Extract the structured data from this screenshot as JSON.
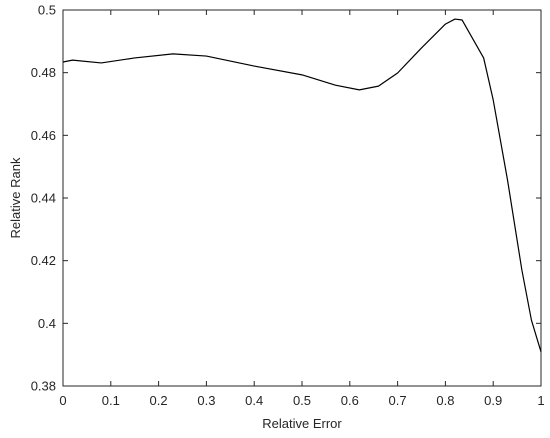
{
  "chart_data": {
    "type": "line",
    "xlabel": "Relative Error",
    "ylabel": "Relative Rank",
    "x": [
      0,
      0.02,
      0.08,
      0.15,
      0.23,
      0.3,
      0.4,
      0.5,
      0.57,
      0.62,
      0.66,
      0.7,
      0.75,
      0.8,
      0.82,
      0.835,
      0.88,
      0.9,
      0.93,
      0.96,
      0.98,
      1.0
    ],
    "series": [
      {
        "color": "#000000",
        "values": [
          0.4834,
          0.484,
          0.4831,
          0.4847,
          0.486,
          0.4853,
          0.4821,
          0.4793,
          0.476,
          0.4745,
          0.4757,
          0.4799,
          0.4879,
          0.4955,
          0.4971,
          0.4968,
          0.4847,
          0.4713,
          0.4457,
          0.417,
          0.401,
          0.3909
        ]
      }
    ],
    "xlim": [
      0,
      1
    ],
    "ylim": [
      0.38,
      0.5
    ],
    "xticks": [
      0,
      0.1,
      0.2,
      0.3,
      0.4,
      0.5,
      0.6,
      0.7,
      0.8,
      0.9,
      1
    ],
    "yticks": [
      0.38,
      0.4,
      0.42,
      0.44,
      0.46,
      0.48,
      0.5
    ],
    "grid": false
  }
}
